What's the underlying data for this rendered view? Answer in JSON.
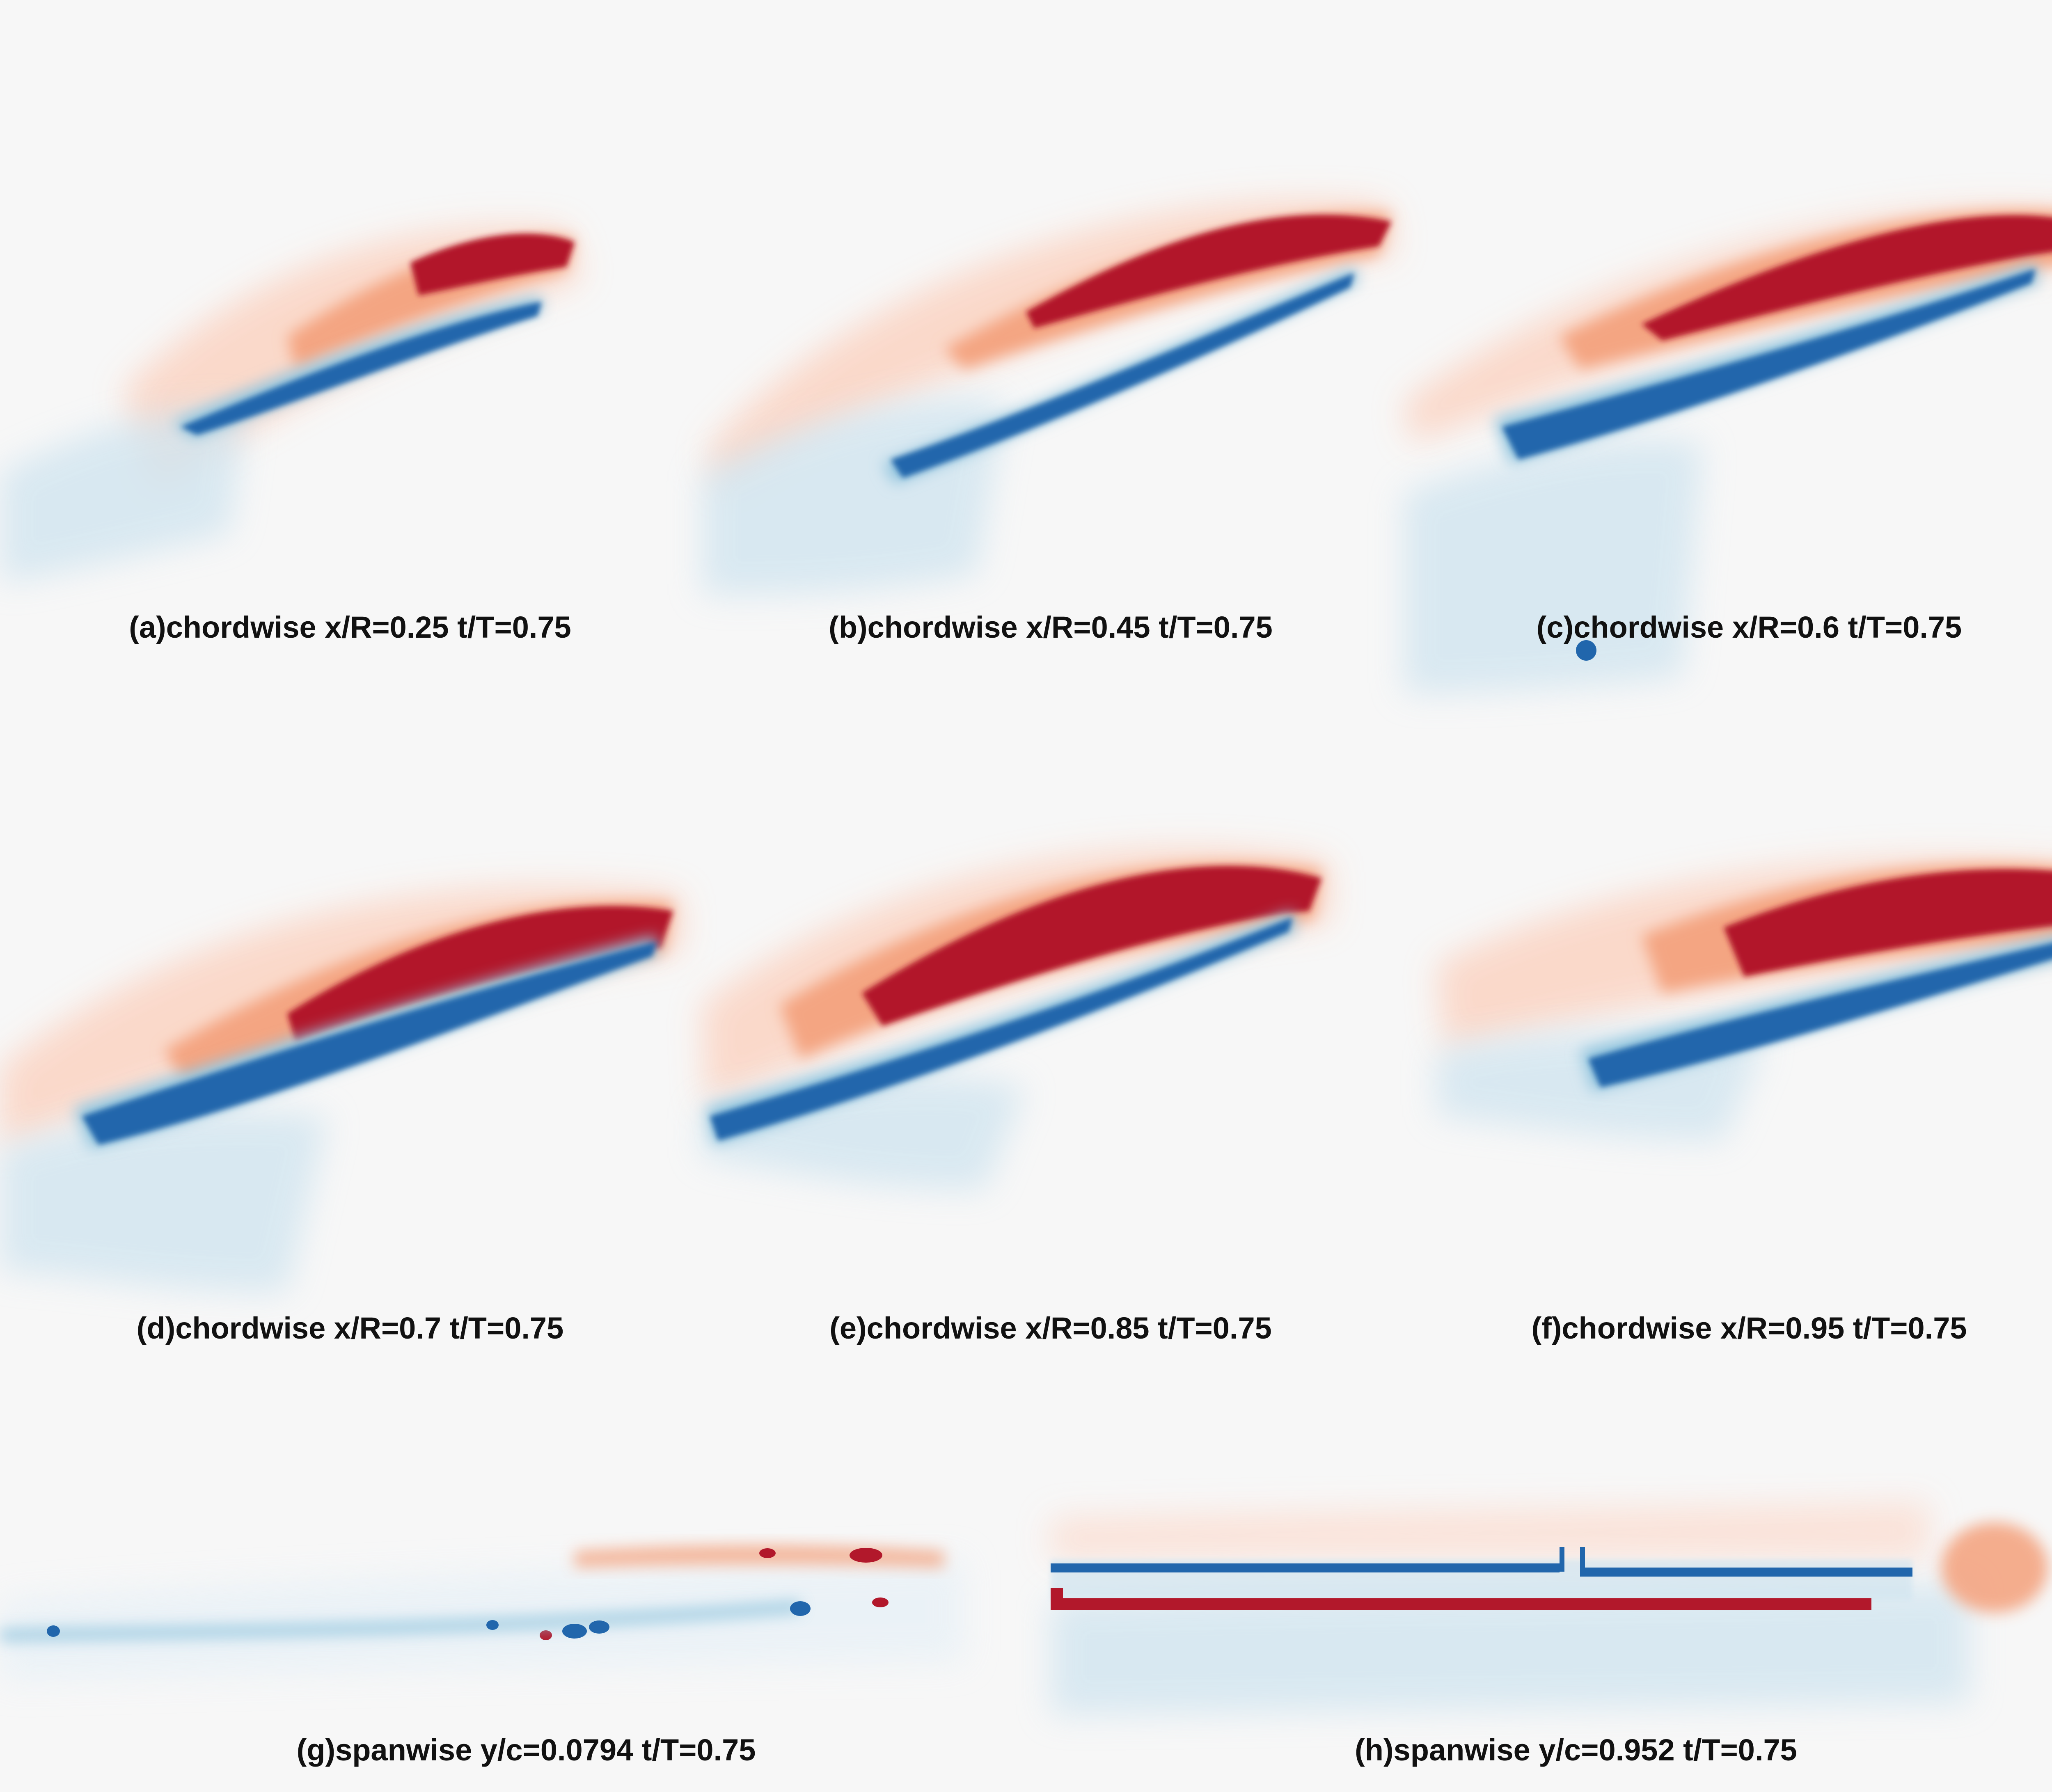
{
  "figure": {
    "colormap": {
      "positive": "#b2182b",
      "positive_light": "#f4a582",
      "negative": "#2166ac",
      "negative_light": "#92c5de",
      "neutral": "#f7f7f7"
    },
    "panels": [
      {
        "id": "a",
        "caption": "(a)chordwise x/R=0.25 t/T=0.75"
      },
      {
        "id": "b",
        "caption": "(b)chordwise x/R=0.45 t/T=0.75"
      },
      {
        "id": "c",
        "caption": "(c)chordwise x/R=0.6 t/T=0.75"
      },
      {
        "id": "d",
        "caption": "(d)chordwise x/R=0.7 t/T=0.75"
      },
      {
        "id": "e",
        "caption": "(e)chordwise x/R=0.85 t/T=0.75"
      },
      {
        "id": "f",
        "caption": "(f)chordwise x/R=0.95 t/T=0.75"
      },
      {
        "id": "g",
        "caption": "(g)spanwise y/c=0.0794 t/T=0.75"
      },
      {
        "id": "h",
        "caption": "(h)spanwise y/c=0.952 t/T=0.75"
      }
    ]
  }
}
